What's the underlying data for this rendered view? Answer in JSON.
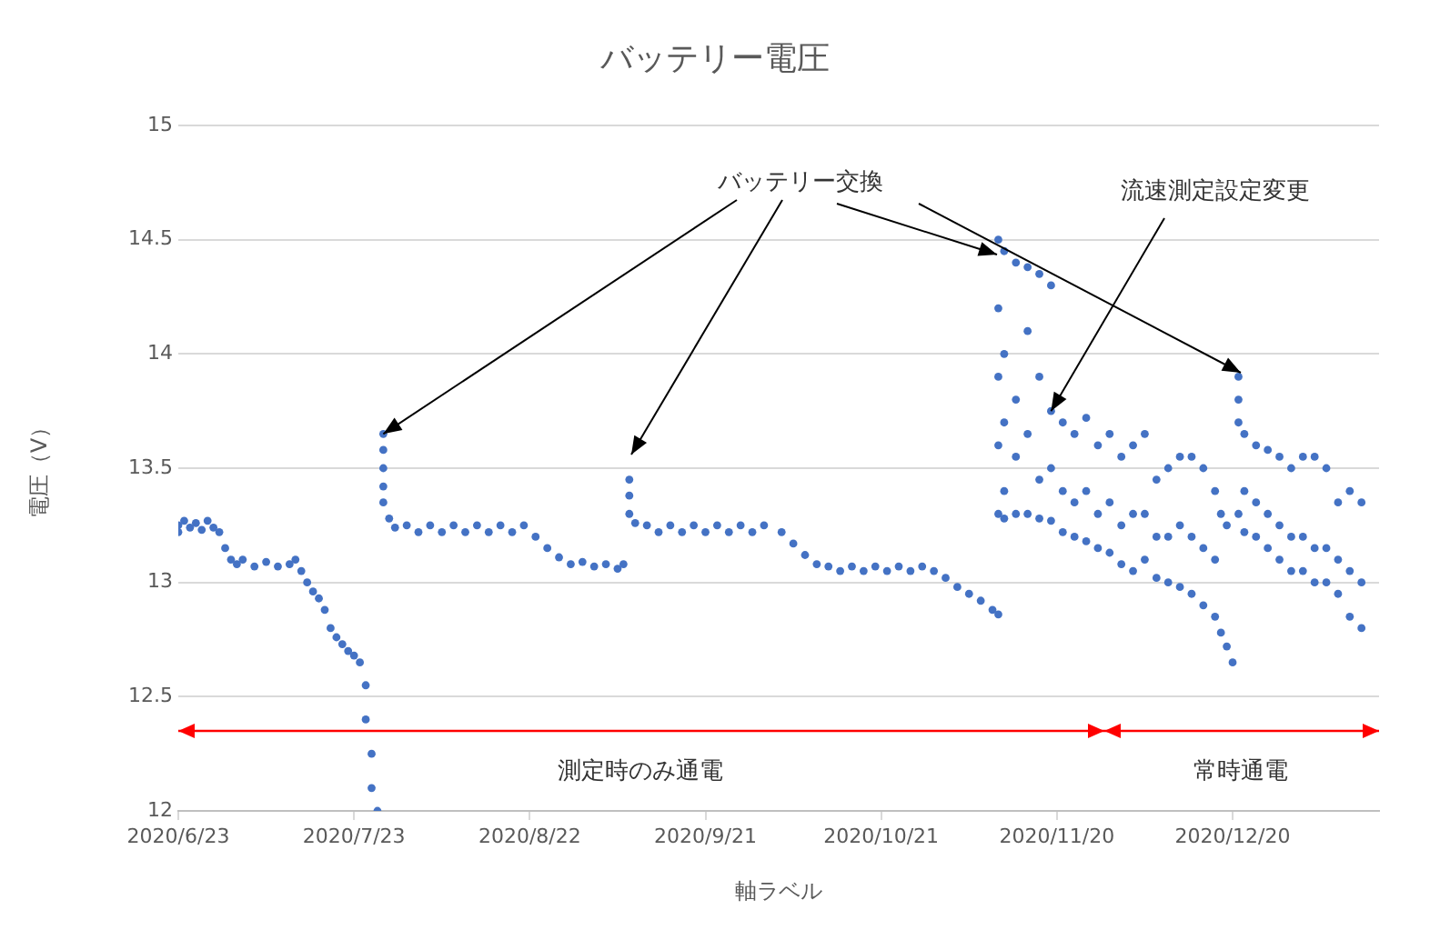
{
  "chart_data": {
    "type": "scatter",
    "title": "バッテリー電圧",
    "xlabel": "軸ラベル",
    "ylabel": "電圧（V）",
    "annotations": [
      {
        "text": "バッテリー交換",
        "x": "2020-07-28",
        "y": 13.65
      },
      {
        "text": "流速測定設定変更",
        "x": "2020-11-19",
        "y": 13.75
      },
      "測定時のみ通電",
      "常時通電"
    ],
    "xlim": [
      "2020-06-23",
      "2021-01-14"
    ],
    "xticks": [
      {
        "value": "2020-06-23",
        "label": "2020/6/23"
      },
      {
        "value": "2020-07-23",
        "label": "2020/7/23"
      },
      {
        "value": "2020-08-22",
        "label": "2020/8/22"
      },
      {
        "value": "2020-09-21",
        "label": "2020/9/21"
      },
      {
        "value": "2020-10-21",
        "label": "2020/10/21"
      },
      {
        "value": "2020-11-20",
        "label": "2020/11/20"
      },
      {
        "value": "2020-12-20",
        "label": "2020/12/20"
      }
    ],
    "ylim": [
      12,
      15
    ],
    "yticks": [
      12,
      12.5,
      13,
      13.5,
      14,
      14.5,
      15
    ],
    "grid": "y",
    "legend": false,
    "marker": "circle",
    "series": [
      {
        "color": "#4472c4",
        "x": [
          "2020-06-23",
          "2020-06-23",
          "2020-06-24",
          "2020-06-25",
          "2020-06-26",
          "2020-06-27",
          "2020-06-28",
          "2020-06-29",
          "2020-06-30",
          "2020-07-01",
          "2020-07-02",
          "2020-07-03",
          "2020-07-04",
          "2020-07-06",
          "2020-07-08",
          "2020-07-10",
          "2020-07-12",
          "2020-07-13",
          "2020-07-14",
          "2020-07-15",
          "2020-07-16",
          "2020-07-17",
          "2020-07-18",
          "2020-07-19",
          "2020-07-20",
          "2020-07-21",
          "2020-07-22",
          "2020-07-23",
          "2020-07-24",
          "2020-07-25",
          "2020-07-25",
          "2020-07-26",
          "2020-07-26",
          "2020-07-27",
          "2020-07-28",
          "2020-07-28",
          "2020-07-28",
          "2020-07-28",
          "2020-07-28",
          "2020-07-29",
          "2020-07-30",
          "2020-08-01",
          "2020-08-03",
          "2020-08-05",
          "2020-08-07",
          "2020-08-09",
          "2020-08-11",
          "2020-08-13",
          "2020-08-15",
          "2020-08-17",
          "2020-08-19",
          "2020-08-21",
          "2020-08-23",
          "2020-08-25",
          "2020-08-27",
          "2020-08-29",
          "2020-08-31",
          "2020-09-02",
          "2020-09-04",
          "2020-09-06",
          "2020-09-07",
          "2020-09-08",
          "2020-09-08",
          "2020-09-08",
          "2020-09-09",
          "2020-09-11",
          "2020-09-13",
          "2020-09-15",
          "2020-09-17",
          "2020-09-19",
          "2020-09-21",
          "2020-09-23",
          "2020-09-25",
          "2020-09-27",
          "2020-09-29",
          "2020-10-01",
          "2020-10-04",
          "2020-10-06",
          "2020-10-08",
          "2020-10-10",
          "2020-10-12",
          "2020-10-14",
          "2020-10-16",
          "2020-10-18",
          "2020-10-20",
          "2020-10-22",
          "2020-10-24",
          "2020-10-26",
          "2020-10-28",
          "2020-10-30",
          "2020-11-01",
          "2020-11-03",
          "2020-11-05",
          "2020-11-07",
          "2020-11-09",
          "2020-11-10",
          "2020-11-10",
          "2020-11-10",
          "2020-11-10",
          "2020-11-10",
          "2020-11-10",
          "2020-11-11",
          "2020-11-11",
          "2020-11-11",
          "2020-11-11",
          "2020-11-11",
          "2020-11-13",
          "2020-11-13",
          "2020-11-13",
          "2020-11-13",
          "2020-11-15",
          "2020-11-15",
          "2020-11-15",
          "2020-11-15",
          "2020-11-17",
          "2020-11-17",
          "2020-11-17",
          "2020-11-17",
          "2020-11-19",
          "2020-11-19",
          "2020-11-19",
          "2020-11-19",
          "2020-11-21",
          "2020-11-21",
          "2020-11-21",
          "2020-11-23",
          "2020-11-23",
          "2020-11-23",
          "2020-11-25",
          "2020-11-25",
          "2020-11-25",
          "2020-11-27",
          "2020-11-27",
          "2020-11-27",
          "2020-11-29",
          "2020-11-29",
          "2020-11-29",
          "2020-12-01",
          "2020-12-01",
          "2020-12-01",
          "2020-12-03",
          "2020-12-03",
          "2020-12-03",
          "2020-12-05",
          "2020-12-05",
          "2020-12-05",
          "2020-12-07",
          "2020-12-07",
          "2020-12-07",
          "2020-12-09",
          "2020-12-09",
          "2020-12-09",
          "2020-12-11",
          "2020-12-11",
          "2020-12-11",
          "2020-12-13",
          "2020-12-13",
          "2020-12-13",
          "2020-12-15",
          "2020-12-15",
          "2020-12-15",
          "2020-12-17",
          "2020-12-17",
          "2020-12-17",
          "2020-12-18",
          "2020-12-18",
          "2020-12-19",
          "2020-12-19",
          "2020-12-20",
          "2020-12-21",
          "2020-12-21",
          "2020-12-21",
          "2020-12-21",
          "2020-12-22",
          "2020-12-22",
          "2020-12-22",
          "2020-12-24",
          "2020-12-24",
          "2020-12-24",
          "2020-12-26",
          "2020-12-26",
          "2020-12-26",
          "2020-12-28",
          "2020-12-28",
          "2020-12-28",
          "2020-12-30",
          "2020-12-30",
          "2020-12-30",
          "2021-01-01",
          "2021-01-01",
          "2021-01-01",
          "2021-01-03",
          "2021-01-03",
          "2021-01-03",
          "2021-01-05",
          "2021-01-05",
          "2021-01-05",
          "2021-01-07",
          "2021-01-07",
          "2021-01-07",
          "2021-01-09",
          "2021-01-09",
          "2021-01-09",
          "2021-01-11",
          "2021-01-11",
          "2021-01-11"
        ],
        "values": [
          13.25,
          13.22,
          13.27,
          13.24,
          13.26,
          13.23,
          13.27,
          13.24,
          13.22,
          13.15,
          13.1,
          13.08,
          13.1,
          13.07,
          13.09,
          13.07,
          13.08,
          13.1,
          13.05,
          13.0,
          12.96,
          12.93,
          12.88,
          12.8,
          12.76,
          12.73,
          12.7,
          12.68,
          12.65,
          12.55,
          12.4,
          12.25,
          12.1,
          12.0,
          13.65,
          13.58,
          13.5,
          13.42,
          13.35,
          13.28,
          13.24,
          13.25,
          13.22,
          13.25,
          13.22,
          13.25,
          13.22,
          13.25,
          13.22,
          13.25,
          13.22,
          13.25,
          13.2,
          13.15,
          13.11,
          13.08,
          13.09,
          13.07,
          13.08,
          13.06,
          13.08,
          13.45,
          13.38,
          13.3,
          13.26,
          13.25,
          13.22,
          13.25,
          13.22,
          13.25,
          13.22,
          13.25,
          13.22,
          13.25,
          13.22,
          13.25,
          13.22,
          13.17,
          13.12,
          13.08,
          13.07,
          13.05,
          13.07,
          13.05,
          13.07,
          13.05,
          13.07,
          13.05,
          13.07,
          13.05,
          13.02,
          12.98,
          12.95,
          12.92,
          12.88,
          12.86,
          14.5,
          14.2,
          13.9,
          13.6,
          13.3,
          14.45,
          14.0,
          13.7,
          13.4,
          13.28,
          14.4,
          13.8,
          13.55,
          13.3,
          14.38,
          14.1,
          13.65,
          13.3,
          14.35,
          13.9,
          13.45,
          13.28,
          14.3,
          13.75,
          13.5,
          13.27,
          13.7,
          13.4,
          13.22,
          13.65,
          13.35,
          13.2,
          13.72,
          13.4,
          13.18,
          13.6,
          13.3,
          13.15,
          13.65,
          13.35,
          13.13,
          13.55,
          13.25,
          13.08,
          13.6,
          13.3,
          13.05,
          13.65,
          13.3,
          13.1,
          13.45,
          13.2,
          13.02,
          13.5,
          13.2,
          13.0,
          13.55,
          13.25,
          12.98,
          13.55,
          13.2,
          12.95,
          13.5,
          13.15,
          12.9,
          13.4,
          13.1,
          12.85,
          13.3,
          12.78,
          13.25,
          12.72,
          12.65,
          13.9,
          13.8,
          13.7,
          13.3,
          13.65,
          13.4,
          13.22,
          13.6,
          13.35,
          13.2,
          13.58,
          13.3,
          13.15,
          13.55,
          13.25,
          13.1,
          13.5,
          13.2,
          13.05,
          13.55,
          13.2,
          13.05,
          13.55,
          13.15,
          13.0,
          13.5,
          13.15,
          13.0,
          13.35,
          13.1,
          12.95,
          13.4,
          13.05,
          12.85,
          13.35,
          13.0,
          12.8
        ]
      }
    ]
  }
}
